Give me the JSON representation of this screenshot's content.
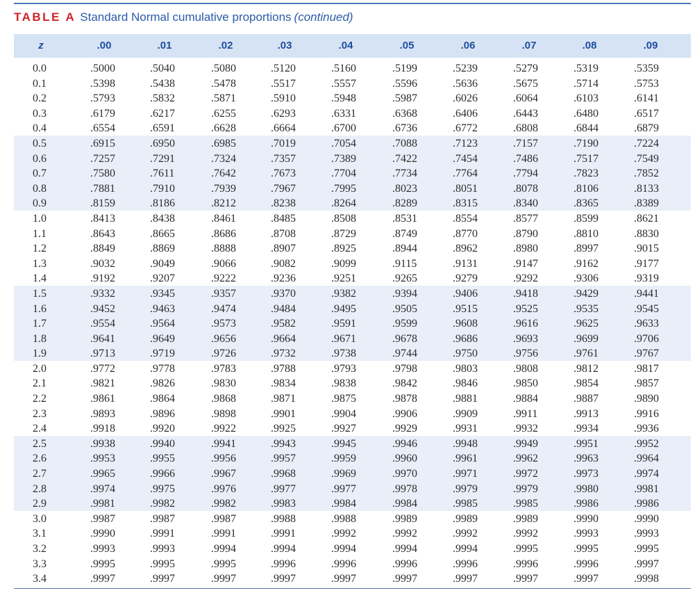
{
  "title": {
    "label": "TABLE A",
    "text": "Standard Normal cumulative proportions",
    "continued": "(continued)"
  },
  "headers": [
    "z",
    ".00",
    ".01",
    ".02",
    ".03",
    ".04",
    ".05",
    ".06",
    ".07",
    ".08",
    ".09"
  ],
  "rows": [
    {
      "z": "0.0",
      "v": [
        ".5000",
        ".5040",
        ".5080",
        ".5120",
        ".5160",
        ".5199",
        ".5239",
        ".5279",
        ".5319",
        ".5359"
      ]
    },
    {
      "z": "0.1",
      "v": [
        ".5398",
        ".5438",
        ".5478",
        ".5517",
        ".5557",
        ".5596",
        ".5636",
        ".5675",
        ".5714",
        ".5753"
      ]
    },
    {
      "z": "0.2",
      "v": [
        ".5793",
        ".5832",
        ".5871",
        ".5910",
        ".5948",
        ".5987",
        ".6026",
        ".6064",
        ".6103",
        ".6141"
      ]
    },
    {
      "z": "0.3",
      "v": [
        ".6179",
        ".6217",
        ".6255",
        ".6293",
        ".6331",
        ".6368",
        ".6406",
        ".6443",
        ".6480",
        ".6517"
      ]
    },
    {
      "z": "0.4",
      "v": [
        ".6554",
        ".6591",
        ".6628",
        ".6664",
        ".6700",
        ".6736",
        ".6772",
        ".6808",
        ".6844",
        ".6879"
      ]
    },
    {
      "z": "0.5",
      "v": [
        ".6915",
        ".6950",
        ".6985",
        ".7019",
        ".7054",
        ".7088",
        ".7123",
        ".7157",
        ".7190",
        ".7224"
      ]
    },
    {
      "z": "0.6",
      "v": [
        ".7257",
        ".7291",
        ".7324",
        ".7357",
        ".7389",
        ".7422",
        ".7454",
        ".7486",
        ".7517",
        ".7549"
      ]
    },
    {
      "z": "0.7",
      "v": [
        ".7580",
        ".7611",
        ".7642",
        ".7673",
        ".7704",
        ".7734",
        ".7764",
        ".7794",
        ".7823",
        ".7852"
      ]
    },
    {
      "z": "0.8",
      "v": [
        ".7881",
        ".7910",
        ".7939",
        ".7967",
        ".7995",
        ".8023",
        ".8051",
        ".8078",
        ".8106",
        ".8133"
      ]
    },
    {
      "z": "0.9",
      "v": [
        ".8159",
        ".8186",
        ".8212",
        ".8238",
        ".8264",
        ".8289",
        ".8315",
        ".8340",
        ".8365",
        ".8389"
      ]
    },
    {
      "z": "1.0",
      "v": [
        ".8413",
        ".8438",
        ".8461",
        ".8485",
        ".8508",
        ".8531",
        ".8554",
        ".8577",
        ".8599",
        ".8621"
      ]
    },
    {
      "z": "1.1",
      "v": [
        ".8643",
        ".8665",
        ".8686",
        ".8708",
        ".8729",
        ".8749",
        ".8770",
        ".8790",
        ".8810",
        ".8830"
      ]
    },
    {
      "z": "1.2",
      "v": [
        ".8849",
        ".8869",
        ".8888",
        ".8907",
        ".8925",
        ".8944",
        ".8962",
        ".8980",
        ".8997",
        ".9015"
      ]
    },
    {
      "z": "1.3",
      "v": [
        ".9032",
        ".9049",
        ".9066",
        ".9082",
        ".9099",
        ".9115",
        ".9131",
        ".9147",
        ".9162",
        ".9177"
      ]
    },
    {
      "z": "1.4",
      "v": [
        ".9192",
        ".9207",
        ".9222",
        ".9236",
        ".9251",
        ".9265",
        ".9279",
        ".9292",
        ".9306",
        ".9319"
      ]
    },
    {
      "z": "1.5",
      "v": [
        ".9332",
        ".9345",
        ".9357",
        ".9370",
        ".9382",
        ".9394",
        ".9406",
        ".9418",
        ".9429",
        ".9441"
      ]
    },
    {
      "z": "1.6",
      "v": [
        ".9452",
        ".9463",
        ".9474",
        ".9484",
        ".9495",
        ".9505",
        ".9515",
        ".9525",
        ".9535",
        ".9545"
      ]
    },
    {
      "z": "1.7",
      "v": [
        ".9554",
        ".9564",
        ".9573",
        ".9582",
        ".9591",
        ".9599",
        ".9608",
        ".9616",
        ".9625",
        ".9633"
      ]
    },
    {
      "z": "1.8",
      "v": [
        ".9641",
        ".9649",
        ".9656",
        ".9664",
        ".9671",
        ".9678",
        ".9686",
        ".9693",
        ".9699",
        ".9706"
      ]
    },
    {
      "z": "1.9",
      "v": [
        ".9713",
        ".9719",
        ".9726",
        ".9732",
        ".9738",
        ".9744",
        ".9750",
        ".9756",
        ".9761",
        ".9767"
      ]
    },
    {
      "z": "2.0",
      "v": [
        ".9772",
        ".9778",
        ".9783",
        ".9788",
        ".9793",
        ".9798",
        ".9803",
        ".9808",
        ".9812",
        ".9817"
      ]
    },
    {
      "z": "2.1",
      "v": [
        ".9821",
        ".9826",
        ".9830",
        ".9834",
        ".9838",
        ".9842",
        ".9846",
        ".9850",
        ".9854",
        ".9857"
      ]
    },
    {
      "z": "2.2",
      "v": [
        ".9861",
        ".9864",
        ".9868",
        ".9871",
        ".9875",
        ".9878",
        ".9881",
        ".9884",
        ".9887",
        ".9890"
      ]
    },
    {
      "z": "2.3",
      "v": [
        ".9893",
        ".9896",
        ".9898",
        ".9901",
        ".9904",
        ".9906",
        ".9909",
        ".9911",
        ".9913",
        ".9916"
      ]
    },
    {
      "z": "2.4",
      "v": [
        ".9918",
        ".9920",
        ".9922",
        ".9925",
        ".9927",
        ".9929",
        ".9931",
        ".9932",
        ".9934",
        ".9936"
      ]
    },
    {
      "z": "2.5",
      "v": [
        ".9938",
        ".9940",
        ".9941",
        ".9943",
        ".9945",
        ".9946",
        ".9948",
        ".9949",
        ".9951",
        ".9952"
      ]
    },
    {
      "z": "2.6",
      "v": [
        ".9953",
        ".9955",
        ".9956",
        ".9957",
        ".9959",
        ".9960",
        ".9961",
        ".9962",
        ".9963",
        ".9964"
      ]
    },
    {
      "z": "2.7",
      "v": [
        ".9965",
        ".9966",
        ".9967",
        ".9968",
        ".9969",
        ".9970",
        ".9971",
        ".9972",
        ".9973",
        ".9974"
      ]
    },
    {
      "z": "2.8",
      "v": [
        ".9974",
        ".9975",
        ".9976",
        ".9977",
        ".9977",
        ".9978",
        ".9979",
        ".9979",
        ".9980",
        ".9981"
      ]
    },
    {
      "z": "2.9",
      "v": [
        ".9981",
        ".9982",
        ".9982",
        ".9983",
        ".9984",
        ".9984",
        ".9985",
        ".9985",
        ".9986",
        ".9986"
      ]
    },
    {
      "z": "3.0",
      "v": [
        ".9987",
        ".9987",
        ".9987",
        ".9988",
        ".9988",
        ".9989",
        ".9989",
        ".9989",
        ".9990",
        ".9990"
      ]
    },
    {
      "z": "3.1",
      "v": [
        ".9990",
        ".9991",
        ".9991",
        ".9991",
        ".9992",
        ".9992",
        ".9992",
        ".9992",
        ".9993",
        ".9993"
      ]
    },
    {
      "z": "3.2",
      "v": [
        ".9993",
        ".9993",
        ".9994",
        ".9994",
        ".9994",
        ".9994",
        ".9994",
        ".9995",
        ".9995",
        ".9995"
      ]
    },
    {
      "z": "3.3",
      "v": [
        ".9995",
        ".9995",
        ".9995",
        ".9996",
        ".9996",
        ".9996",
        ".9996",
        ".9996",
        ".9996",
        ".9997"
      ]
    },
    {
      "z": "3.4",
      "v": [
        ".9997",
        ".9997",
        ".9997",
        ".9997",
        ".9997",
        ".9997",
        ".9997",
        ".9997",
        ".9997",
        ".9998"
      ]
    }
  ]
}
